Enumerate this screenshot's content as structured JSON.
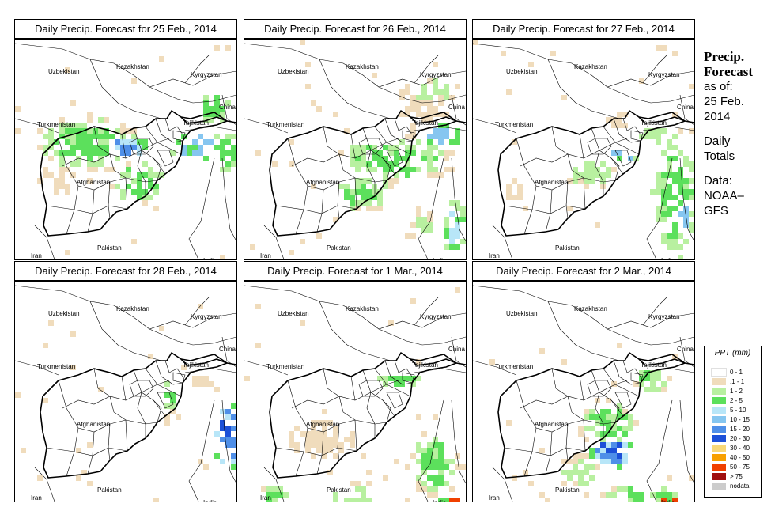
{
  "panels": [
    {
      "title": "Daily Precip. Forecast for  25 Feb., 2014",
      "day": 0
    },
    {
      "title": "Daily Precip. Forecast for  26 Feb., 2014",
      "day": 1
    },
    {
      "title": "Daily Precip. Forecast for  27 Feb., 2014",
      "day": 2
    },
    {
      "title": "Daily Precip. Forecast for  28 Feb., 2014",
      "day": 3
    },
    {
      "title": "Daily Precip. Forecast for  1 Mar., 2014",
      "day": 4
    },
    {
      "title": "Daily Precip. Forecast for  2 Mar., 2014",
      "day": 5
    }
  ],
  "countries": {
    "uzbekistan": "Uzbekistan",
    "kazakhstan": "Kazakhstan",
    "kyrgyzstan": "Kyrgyzstan",
    "china": "China",
    "turkmenistan": "Turkmenistan",
    "tajikistan": "Tajikistan",
    "afghanistan": "Afghanistan",
    "iran": "Iran",
    "pakistan": "Pakistan",
    "india": "India"
  },
  "sidebar": {
    "title_line1": "Precip.",
    "title_line2": "Forecast",
    "asof_line1": "as of:",
    "asof_line2": "25 Feb.",
    "asof_line3": "2014",
    "totals_line1": "Daily",
    "totals_line2": "Totals",
    "data_line1": "Data:",
    "data_line2": "NOAA–",
    "data_line3": "GFS"
  },
  "legend": {
    "title": "PPT (mm)",
    "items": [
      {
        "label": "0 - 1",
        "color": "#ffffff"
      },
      {
        "label": ".1 - 1",
        "color": "#f0dcbc"
      },
      {
        "label": "1 - 2",
        "color": "#b8f0a0"
      },
      {
        "label": "2 - 5",
        "color": "#5ce05c"
      },
      {
        "label": "5 - 10",
        "color": "#b8e6f8"
      },
      {
        "label": "10 - 15",
        "color": "#86c6f0"
      },
      {
        "label": "15 - 20",
        "color": "#4f8fe8"
      },
      {
        "label": "20 - 30",
        "color": "#1c50d8"
      },
      {
        "label": "30 - 40",
        "color": "#f8d878"
      },
      {
        "label": "40 - 50",
        "color": "#f8a000"
      },
      {
        "label": "50 - 75",
        "color": "#f04000"
      },
      {
        "label": "> 75",
        "color": "#a01010"
      },
      {
        "label": "nodata",
        "color": "#cccccc"
      }
    ]
  }
}
